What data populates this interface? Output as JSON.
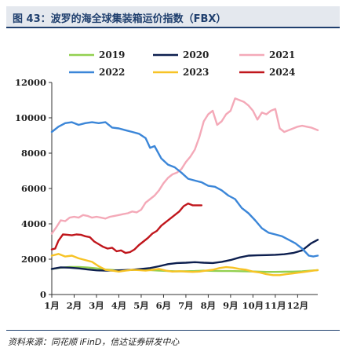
{
  "title": "图 43：波罗的海全球集装箱运价指数（FBX）",
  "source": "资料来源：同花顺 iFinD，信达证券研发中心",
  "chart_data": {
    "type": "line",
    "title": "",
    "xlabel": "",
    "ylabel": "",
    "ylim": [
      0,
      12000
    ],
    "xlim": [
      1,
      12.9
    ],
    "y_ticks": [
      0,
      2000,
      4000,
      6000,
      8000,
      10000,
      12000
    ],
    "x_tick_labels": [
      "1月",
      "2月",
      "3月",
      "4月",
      "5月",
      "6月",
      "7月",
      "8月",
      "9月",
      "10月",
      "11月",
      "12月"
    ],
    "legend_position": "top",
    "grid": false,
    "series": [
      {
        "name": "2019",
        "color": "#92d050",
        "x": [
          1.0,
          1.4,
          1.8,
          2.2,
          2.6,
          3.0,
          3.4,
          3.8,
          4.2,
          4.6,
          5.0,
          5.4,
          5.8,
          6.2,
          6.6,
          7.0,
          7.4,
          7.8,
          8.2,
          8.6,
          9.0,
          9.4,
          9.8,
          10.2,
          10.6,
          11.0,
          11.4,
          11.8,
          12.2,
          12.6,
          12.9
        ],
        "values": [
          1450,
          1520,
          1560,
          1560,
          1530,
          1480,
          1420,
          1380,
          1370,
          1390,
          1400,
          1380,
          1350,
          1330,
          1310,
          1320,
          1330,
          1350,
          1340,
          1330,
          1330,
          1320,
          1310,
          1300,
          1280,
          1280,
          1290,
          1300,
          1310,
          1350,
          1380
        ]
      },
      {
        "name": "2020",
        "color": "#0d1f4f",
        "x": [
          1.0,
          1.4,
          1.8,
          2.2,
          2.6,
          3.0,
          3.4,
          3.8,
          4.2,
          4.6,
          5.0,
          5.4,
          5.8,
          6.2,
          6.6,
          7.0,
          7.4,
          7.8,
          8.2,
          8.6,
          9.0,
          9.4,
          9.8,
          10.2,
          10.6,
          11.0,
          11.4,
          11.8,
          12.2,
          12.6,
          12.9
        ],
        "values": [
          1450,
          1540,
          1520,
          1480,
          1420,
          1370,
          1350,
          1360,
          1380,
          1400,
          1450,
          1500,
          1600,
          1720,
          1780,
          1800,
          1830,
          1800,
          1780,
          1850,
          1950,
          2100,
          2200,
          2220,
          2230,
          2250,
          2280,
          2350,
          2500,
          2900,
          3100
        ]
      },
      {
        "name": "2021",
        "color": "#f4a9b8",
        "x": [
          1.0,
          1.2,
          1.4,
          1.6,
          1.8,
          2.0,
          2.2,
          2.4,
          2.6,
          2.8,
          3.0,
          3.2,
          3.4,
          3.6,
          3.8,
          4.0,
          4.2,
          4.4,
          4.6,
          4.8,
          5.0,
          5.2,
          5.4,
          5.6,
          5.8,
          6.0,
          6.2,
          6.4,
          6.6,
          6.8,
          7.0,
          7.2,
          7.4,
          7.6,
          7.8,
          8.0,
          8.2,
          8.4,
          8.6,
          8.8,
          9.0,
          9.2,
          9.4,
          9.6,
          9.8,
          10.0,
          10.2,
          10.4,
          10.6,
          10.8,
          11.0,
          11.2,
          11.4,
          11.6,
          11.8,
          12.0,
          12.2,
          12.4,
          12.6,
          12.9
        ],
        "values": [
          3450,
          3800,
          4200,
          4150,
          4350,
          4400,
          4350,
          4500,
          4450,
          4350,
          4400,
          4350,
          4300,
          4400,
          4450,
          4500,
          4550,
          4600,
          4700,
          4650,
          4800,
          5200,
          5400,
          5600,
          5900,
          6300,
          6600,
          6800,
          6900,
          7100,
          7500,
          7800,
          8200,
          8900,
          9800,
          10200,
          10400,
          9600,
          9800,
          10200,
          10400,
          11100,
          11000,
          10900,
          10700,
          10400,
          9900,
          10300,
          10200,
          10400,
          10500,
          9400,
          9200,
          9300,
          9400,
          9500,
          9550,
          9500,
          9450,
          9300
        ]
      },
      {
        "name": "2022",
        "color": "#3b86d8",
        "x": [
          1.0,
          1.3,
          1.6,
          1.9,
          2.2,
          2.5,
          2.8,
          3.1,
          3.4,
          3.7,
          4.0,
          4.3,
          4.6,
          4.9,
          5.2,
          5.4,
          5.6,
          5.9,
          6.2,
          6.5,
          6.8,
          7.1,
          7.4,
          7.7,
          8.0,
          8.3,
          8.6,
          8.9,
          9.2,
          9.5,
          9.8,
          10.1,
          10.4,
          10.7,
          11.0,
          11.3,
          11.6,
          11.9,
          12.2,
          12.5,
          12.7,
          12.9
        ],
        "values": [
          9200,
          9500,
          9700,
          9750,
          9600,
          9700,
          9750,
          9700,
          9750,
          9450,
          9400,
          9300,
          9200,
          9100,
          8850,
          8300,
          8400,
          7700,
          7350,
          7200,
          6900,
          6550,
          6450,
          6350,
          6150,
          6100,
          5900,
          5600,
          5400,
          4900,
          4600,
          4200,
          3750,
          3500,
          3400,
          3300,
          3100,
          2900,
          2600,
          2200,
          2150,
          2200
        ]
      },
      {
        "name": "2023",
        "color": "#f7c325",
        "x": [
          1.0,
          1.3,
          1.6,
          1.9,
          2.2,
          2.5,
          2.8,
          3.1,
          3.4,
          3.7,
          4.0,
          4.3,
          4.6,
          4.9,
          5.2,
          5.5,
          5.8,
          6.1,
          6.4,
          6.7,
          7.0,
          7.3,
          7.6,
          7.9,
          8.2,
          8.5,
          8.8,
          9.1,
          9.4,
          9.7,
          10.0,
          10.3,
          10.6,
          10.9,
          11.2,
          11.5,
          11.8,
          12.1,
          12.4,
          12.7,
          12.9
        ],
        "values": [
          2200,
          2300,
          2150,
          2200,
          2050,
          1950,
          1850,
          1600,
          1400,
          1350,
          1300,
          1350,
          1400,
          1380,
          1350,
          1400,
          1450,
          1350,
          1300,
          1320,
          1300,
          1280,
          1300,
          1350,
          1400,
          1500,
          1550,
          1520,
          1450,
          1400,
          1300,
          1250,
          1150,
          1100,
          1100,
          1150,
          1200,
          1250,
          1300,
          1350,
          1380
        ]
      },
      {
        "name": "2024",
        "color": "#c0161c",
        "x": [
          1.0,
          1.15,
          1.3,
          1.5,
          1.7,
          1.9,
          2.1,
          2.3,
          2.5,
          2.7,
          2.9,
          3.1,
          3.3,
          3.5,
          3.7,
          3.9,
          4.1,
          4.3,
          4.5,
          4.7,
          4.9,
          5.1,
          5.3,
          5.5,
          5.7,
          5.9,
          6.1,
          6.3,
          6.5,
          6.7,
          6.9,
          7.1,
          7.3,
          7.5,
          7.7
        ],
        "values": [
          2550,
          2600,
          3050,
          3400,
          3380,
          3350,
          3400,
          3380,
          3300,
          3250,
          3000,
          2850,
          2700,
          2600,
          2650,
          2450,
          2500,
          2350,
          2400,
          2550,
          2800,
          3000,
          3200,
          3450,
          3600,
          3900,
          4100,
          4300,
          4500,
          4700,
          5000,
          5150,
          5050,
          5050,
          5050
        ]
      }
    ]
  }
}
